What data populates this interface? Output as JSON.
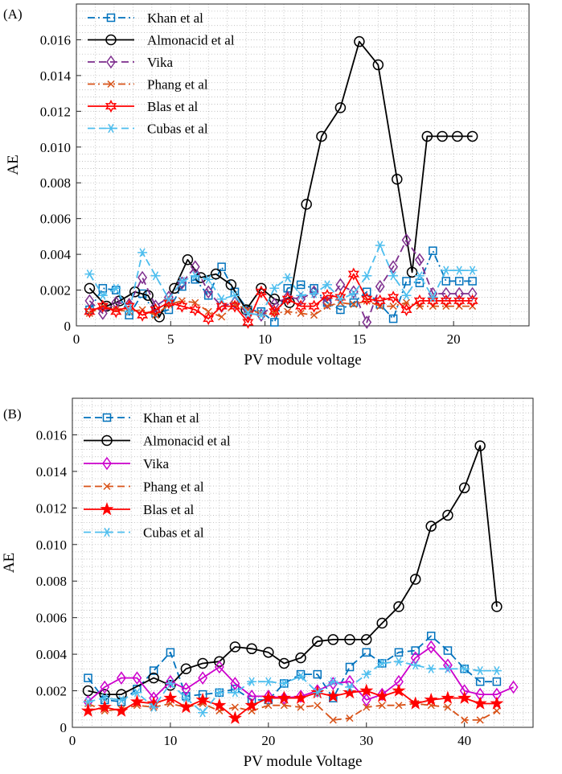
{
  "chart_data": [
    {
      "type": "line",
      "panel_label": "(A)",
      "xlabel": "PV module voltage",
      "ylabel": "AE",
      "xlim": [
        0,
        24
      ],
      "ylim": [
        0,
        0.018
      ],
      "xticks": [
        0,
        5,
        10,
        15,
        20
      ],
      "xtick_labels": [
        "0",
        "5",
        "10",
        "15",
        "20"
      ],
      "yticks": [
        0,
        0.002,
        0.004,
        0.006,
        0.008,
        0.01,
        0.012,
        0.014,
        0.016
      ],
      "ytick_labels": [
        "0",
        "0.002",
        "0.004",
        "0.006",
        "0.008",
        "0.010",
        "0.012",
        "0.014",
        "0.016"
      ],
      "grid": true,
      "legend_position": "top-left",
      "series": [
        {
          "name": "Khan et al",
          "color": "#0072BD",
          "dash": "dashdot",
          "marker": "square",
          "x": [
            0.7,
            1.4,
            2.1,
            2.8,
            3.5,
            4.2,
            4.9,
            5.6,
            6.3,
            7.0,
            7.7,
            8.4,
            9.1,
            9.8,
            10.5,
            11.2,
            11.9,
            12.6,
            13.3,
            14.0,
            14.7,
            15.4,
            16.1,
            16.8,
            17.5,
            18.2,
            18.9,
            19.6,
            20.3,
            21.0
          ],
          "y": [
            0.0009,
            0.0021,
            0.002,
            0.0006,
            0.0018,
            0.0007,
            0.0009,
            0.0022,
            0.0026,
            0.0017,
            0.0033,
            0.0019,
            0.0009,
            0.0008,
            0.0002,
            0.0021,
            0.0023,
            0.0021,
            0.0013,
            0.0009,
            0.0013,
            0.0019,
            0.0012,
            0.0004,
            0.0025,
            0.0024,
            0.0042,
            0.0025,
            0.0025,
            0.0025
          ]
        },
        {
          "name": "Almonacid et al",
          "color": "#000000",
          "dash": "solid",
          "marker": "circle",
          "x": [
            0.7,
            1.6,
            2.3,
            3.1,
            3.8,
            4.4,
            5.2,
            5.9,
            6.6,
            7.4,
            8.2,
            9.0,
            9.8,
            10.5,
            11.3,
            12.2,
            13.0,
            14.0,
            15.0,
            16.0,
            17.0,
            17.8,
            18.6,
            19.4,
            20.2,
            21.0
          ],
          "y": [
            0.0021,
            0.0011,
            0.0014,
            0.0019,
            0.0017,
            0.0005,
            0.0021,
            0.0037,
            0.0027,
            0.0029,
            0.0023,
            0.0009,
            0.0021,
            0.0015,
            0.0013,
            0.0068,
            0.0106,
            0.0122,
            0.0159,
            0.0146,
            0.0082,
            0.003,
            0.0106,
            0.0106,
            0.0106,
            0.0106
          ]
        },
        {
          "name": "Vika",
          "color": "#7E2F8E",
          "dash": "dashed",
          "marker": "diamond",
          "x": [
            0.7,
            1.4,
            2.1,
            2.8,
            3.5,
            4.2,
            4.9,
            5.6,
            6.3,
            7.0,
            7.7,
            8.4,
            9.1,
            9.8,
            10.5,
            11.2,
            11.9,
            12.6,
            13.3,
            14.0,
            14.7,
            15.4,
            16.1,
            16.8,
            17.5,
            18.2,
            18.9,
            19.6,
            20.3,
            21.0
          ],
          "y": [
            0.0014,
            0.0007,
            0.0013,
            0.0012,
            0.0027,
            0.0011,
            0.0016,
            0.0024,
            0.0033,
            0.0019,
            0.0011,
            0.0013,
            0.0007,
            0.0006,
            0.0012,
            0.0016,
            0.0015,
            0.0019,
            0.0013,
            0.0023,
            0.0019,
            0.0002,
            0.0022,
            0.0033,
            0.0048,
            0.0037,
            0.0018,
            0.0018,
            0.0018,
            0.0018
          ]
        },
        {
          "name": "Phang et al",
          "color": "#D95319",
          "dash": "dashdot",
          "marker": "x",
          "x": [
            0.7,
            1.4,
            2.1,
            2.8,
            3.5,
            4.2,
            4.9,
            5.6,
            6.3,
            7.0,
            7.7,
            8.4,
            9.1,
            9.8,
            10.5,
            11.2,
            11.9,
            12.6,
            13.3,
            14.0,
            14.7,
            15.4,
            16.1,
            16.8,
            17.5,
            18.2,
            18.9,
            19.6,
            20.3,
            21.0
          ],
          "y": [
            0.0007,
            0.0011,
            0.0009,
            0.0008,
            0.0009,
            0.0006,
            0.0012,
            0.0014,
            0.0013,
            0.0008,
            0.0005,
            0.0012,
            0.0009,
            0.0007,
            0.0007,
            0.0008,
            0.0007,
            0.0006,
            0.0011,
            0.0013,
            0.0012,
            0.0014,
            0.0011,
            0.0011,
            0.0013,
            0.0011,
            0.0011,
            0.0011,
            0.0011,
            0.0011
          ]
        },
        {
          "name": "Blas et al",
          "color": "#FF0000",
          "dash": "solid",
          "marker": "hexagram",
          "x": [
            0.7,
            1.4,
            2.1,
            2.8,
            3.5,
            4.2,
            4.9,
            5.6,
            6.3,
            7.0,
            7.7,
            8.4,
            9.1,
            9.8,
            10.5,
            11.2,
            11.9,
            12.6,
            13.3,
            14.0,
            14.7,
            15.4,
            16.1,
            16.8,
            17.5,
            18.2,
            18.9,
            19.6,
            20.3,
            21.0
          ],
          "y": [
            0.0008,
            0.0011,
            0.0008,
            0.0011,
            0.0006,
            0.0009,
            0.0013,
            0.0011,
            0.0009,
            0.0004,
            0.0011,
            0.0011,
            0.0002,
            0.0019,
            0.0008,
            0.0015,
            0.0011,
            0.0011,
            0.0017,
            0.0016,
            0.0029,
            0.0015,
            0.0014,
            0.0016,
            0.0009,
            0.0014,
            0.0014,
            0.0014,
            0.0014,
            0.0014
          ]
        },
        {
          "name": "Cubas et al",
          "color": "#4DBEEE",
          "dash": "dashed",
          "marker": "asterisk",
          "x": [
            0.7,
            1.4,
            2.1,
            2.8,
            3.5,
            4.2,
            4.9,
            5.6,
            6.3,
            7.0,
            7.7,
            8.4,
            9.1,
            9.8,
            10.5,
            11.2,
            11.9,
            12.6,
            13.3,
            14.0,
            14.7,
            15.4,
            16.1,
            16.8,
            17.5,
            18.2,
            18.9,
            19.6,
            20.3,
            21.0
          ],
          "y": [
            0.0029,
            0.0017,
            0.0021,
            0.0008,
            0.0041,
            0.0028,
            0.0015,
            0.0025,
            0.0028,
            0.0026,
            0.0015,
            0.0017,
            0.0007,
            0.0006,
            0.0021,
            0.0027,
            0.0017,
            0.0018,
            0.0023,
            0.0015,
            0.0018,
            0.0028,
            0.0045,
            0.0028,
            0.0017,
            0.0028,
            0.0016,
            0.0031,
            0.0031,
            0.0031
          ]
        }
      ]
    },
    {
      "type": "line",
      "panel_label": "(B)",
      "xlabel": "PV module Voltage",
      "ylabel": "AE",
      "xlim": [
        0,
        47
      ],
      "ylim": [
        0,
        0.018
      ],
      "xticks": [
        0,
        10,
        20,
        30,
        40
      ],
      "xtick_labels": [
        "0",
        "10",
        "20",
        "30",
        "40"
      ],
      "yticks": [
        0,
        0.002,
        0.004,
        0.006,
        0.008,
        0.01,
        0.012,
        0.014,
        0.016
      ],
      "ytick_labels": [
        "0",
        "0.002",
        "0.004",
        "0.006",
        "0.008",
        "0.010",
        "0.012",
        "0.014",
        "0.016"
      ],
      "grid": true,
      "legend_position": "top-left",
      "series": [
        {
          "name": "Khan et al",
          "color": "#0072BD",
          "dash": "dashed",
          "marker": "square",
          "x": [
            1.6,
            3.3,
            5.0,
            6.6,
            8.3,
            10.0,
            11.6,
            13.3,
            15.0,
            16.6,
            18.3,
            20.0,
            21.6,
            23.3,
            25.0,
            26.6,
            28.3,
            30.0,
            31.6,
            33.3,
            35.0,
            36.6,
            38.3,
            40.0,
            41.6,
            43.3
          ],
          "y": [
            0.0027,
            0.0015,
            0.0014,
            0.0021,
            0.0031,
            0.0041,
            0.0017,
            0.0018,
            0.0019,
            0.0021,
            0.0015,
            0.0015,
            0.0024,
            0.0029,
            0.0029,
            0.0016,
            0.0033,
            0.0041,
            0.0035,
            0.0041,
            0.0042,
            0.005,
            0.0042,
            0.0032,
            0.0025,
            0.0025
          ]
        },
        {
          "name": "Almonacid et al",
          "color": "#000000",
          "dash": "solid",
          "marker": "circle",
          "x": [
            1.6,
            3.3,
            5.0,
            8.3,
            10.0,
            11.6,
            13.3,
            15.0,
            16.6,
            18.3,
            20.0,
            21.6,
            23.3,
            25.0,
            26.6,
            28.3,
            30.0,
            31.6,
            33.3,
            35.0,
            36.6,
            38.3,
            40.0,
            41.6,
            43.3
          ],
          "y": [
            0.002,
            0.0018,
            0.0018,
            0.0027,
            0.0023,
            0.0032,
            0.0035,
            0.0036,
            0.0044,
            0.0043,
            0.0041,
            0.0035,
            0.0038,
            0.0047,
            0.0048,
            0.0048,
            0.0048,
            0.0057,
            0.0066,
            0.0081,
            0.011,
            0.0116,
            0.0131,
            0.0154,
            0.0066
          ]
        },
        {
          "name": "Vika",
          "color": "#CC00CC",
          "dash": "solid",
          "marker": "diamond",
          "x": [
            1.6,
            3.3,
            5.0,
            6.6,
            8.3,
            10.0,
            11.6,
            13.3,
            15.0,
            16.6,
            18.3,
            20.0,
            21.6,
            23.3,
            25.0,
            26.6,
            28.3,
            30.0,
            31.6,
            33.3,
            35.0,
            36.6,
            38.3,
            40.0,
            41.6,
            43.3,
            45.0
          ],
          "y": [
            0.0014,
            0.0022,
            0.0027,
            0.0027,
            0.0016,
            0.0025,
            0.0021,
            0.0027,
            0.0033,
            0.0024,
            0.0017,
            0.0017,
            0.0016,
            0.0017,
            0.002,
            0.0024,
            0.0025,
            0.0015,
            0.0018,
            0.0025,
            0.0038,
            0.0044,
            0.0034,
            0.002,
            0.0018,
            0.0018,
            0.0022
          ]
        },
        {
          "name": "Phang et al",
          "color": "#D95319",
          "dash": "dashed",
          "marker": "x",
          "x": [
            1.6,
            3.3,
            5.0,
            6.6,
            8.3,
            10.0,
            11.6,
            13.3,
            15.0,
            16.6,
            18.3,
            20.0,
            21.6,
            23.3,
            25.0,
            26.6,
            28.3,
            30.0,
            31.6,
            33.3,
            35.0,
            36.6,
            38.3,
            40.0,
            41.6,
            43.3
          ],
          "y": [
            0.0013,
            0.0009,
            0.001,
            0.0012,
            0.0011,
            0.0013,
            0.0011,
            0.0013,
            0.0009,
            0.0011,
            0.0009,
            0.0012,
            0.0012,
            0.0011,
            0.0012,
            0.0004,
            0.0005,
            0.0011,
            0.0012,
            0.0012,
            0.0013,
            0.0012,
            0.0011,
            0.0004,
            0.0004,
            0.0009
          ]
        },
        {
          "name": "Blas et al",
          "color": "#FF0000",
          "dash": "solid",
          "marker": "pentagram",
          "x": [
            1.6,
            3.3,
            5.0,
            6.6,
            8.3,
            10.0,
            11.6,
            13.3,
            15.0,
            16.6,
            18.3,
            20.0,
            21.6,
            23.3,
            25.0,
            26.6,
            28.3,
            30.0,
            31.6,
            33.3,
            35.0,
            36.6,
            38.3,
            40.0,
            41.6,
            43.3
          ],
          "y": [
            0.0009,
            0.0011,
            0.0009,
            0.0014,
            0.0013,
            0.0016,
            0.0011,
            0.0015,
            0.0012,
            0.0005,
            0.0012,
            0.0016,
            0.0016,
            0.0016,
            0.0019,
            0.0017,
            0.0019,
            0.002,
            0.0017,
            0.002,
            0.0013,
            0.0015,
            0.0016,
            0.0016,
            0.0013,
            0.0013
          ]
        },
        {
          "name": "Cubas et al",
          "color": "#4DBEEE",
          "dash": "dashed",
          "marker": "asterisk",
          "x": [
            1.6,
            3.3,
            5.0,
            6.6,
            8.3,
            10.0,
            11.6,
            13.3,
            15.0,
            16.6,
            18.3,
            20.0,
            21.6,
            23.3,
            25.0,
            26.6,
            28.3,
            30.0,
            31.6,
            33.3,
            35.0,
            36.6,
            38.3,
            40.0,
            41.6,
            43.3
          ],
          "y": [
            0.0014,
            0.0016,
            0.0015,
            0.0019,
            0.0011,
            0.0024,
            0.0016,
            0.0008,
            0.0019,
            0.0019,
            0.0025,
            0.0025,
            0.0024,
            0.0028,
            0.0019,
            0.0025,
            0.0022,
            0.0029,
            0.0035,
            0.0036,
            0.0034,
            0.0032,
            0.0032,
            0.0032,
            0.0031,
            0.0031
          ]
        }
      ]
    }
  ]
}
